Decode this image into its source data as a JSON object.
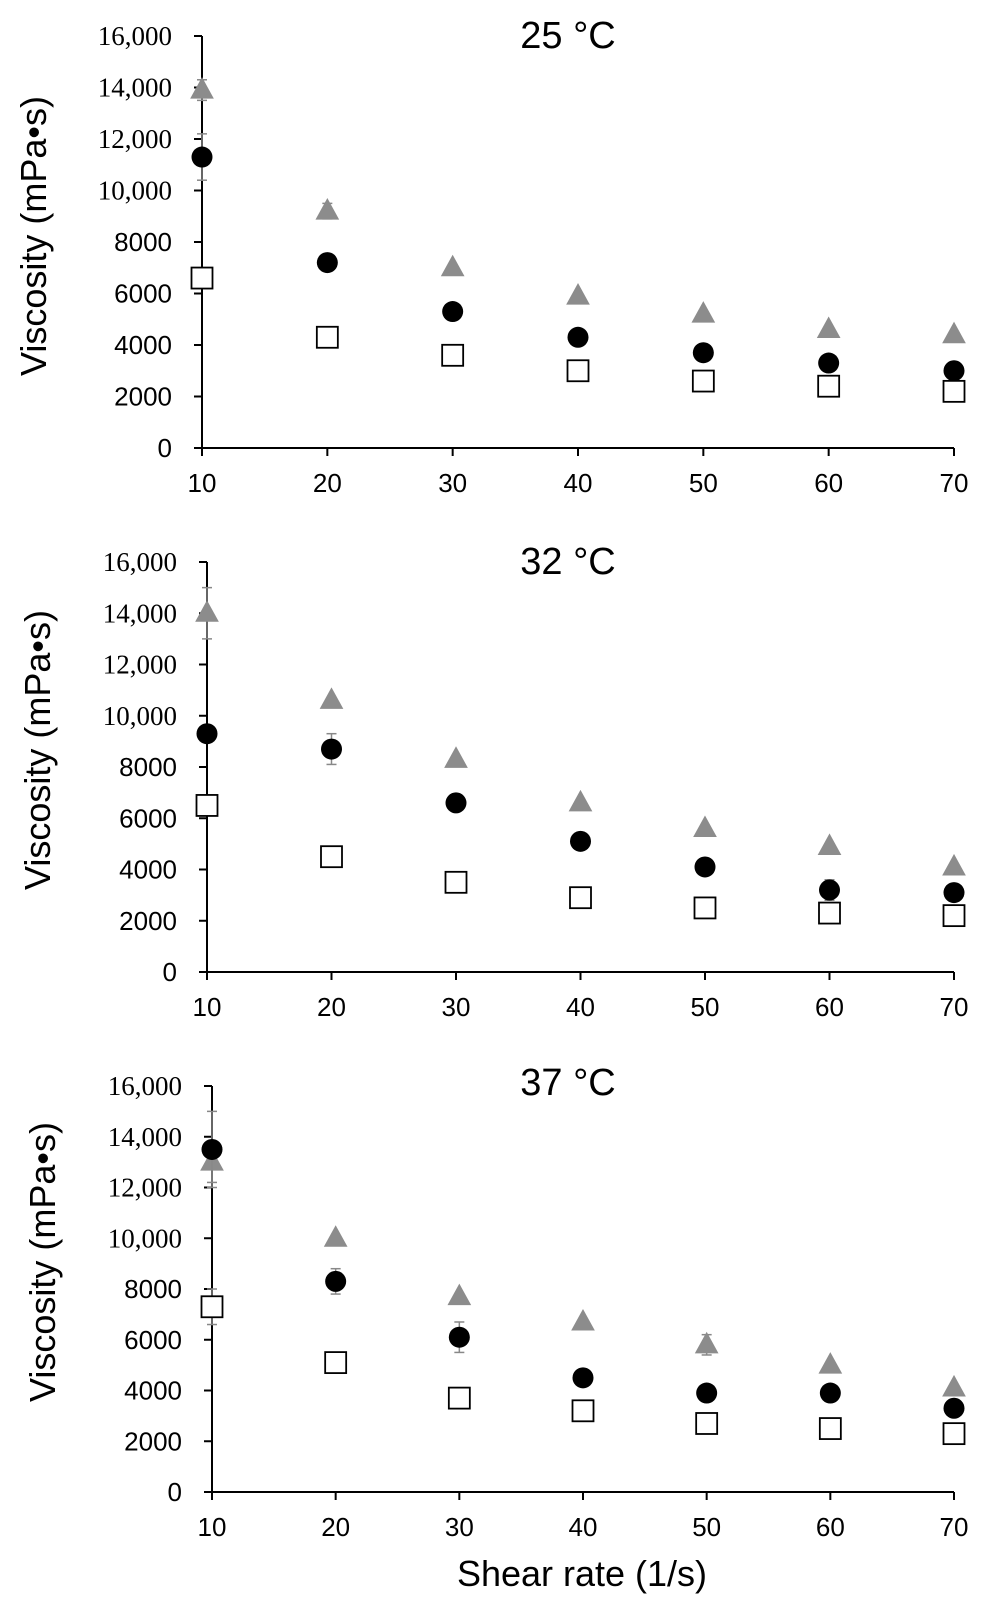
{
  "chart_data": [
    {
      "type": "scatter",
      "title": "25 °C",
      "xlabel": "",
      "ylabel": "Viscosity (mPa•s)",
      "x": [
        10,
        20,
        30,
        40,
        50,
        60,
        70
      ],
      "xticks": [
        "10",
        "20",
        "30",
        "40",
        "50",
        "60",
        "70"
      ],
      "yticks": [
        "0",
        "2000",
        "4000",
        "6000",
        "8000",
        "10,000",
        "12,000",
        "14,000",
        "16,000"
      ],
      "ylim": [
        0,
        16000
      ],
      "series": [
        {
          "name": "triangle",
          "marker": "triangle",
          "color": "#8c8c8c",
          "values": [
            13900,
            9200,
            7000,
            5900,
            5200,
            4600,
            4400
          ],
          "errors": [
            400,
            300,
            0,
            0,
            0,
            0,
            0
          ]
        },
        {
          "name": "circle",
          "marker": "circle",
          "color": "#000000",
          "values": [
            11300,
            7200,
            5300,
            4300,
            3700,
            3300,
            3000
          ],
          "errors": [
            900,
            0,
            0,
            0,
            0,
            0,
            0
          ]
        },
        {
          "name": "square",
          "marker": "square",
          "color": "#ffffff",
          "values": [
            6600,
            4300,
            3600,
            3000,
            2600,
            2400,
            2200
          ],
          "errors": [
            0,
            300,
            0,
            0,
            0,
            0,
            0
          ]
        }
      ]
    },
    {
      "type": "scatter",
      "title": "32 °C",
      "xlabel": "",
      "ylabel": "Viscosity (mPa•s)",
      "x": [
        10,
        20,
        30,
        40,
        50,
        60,
        70
      ],
      "xticks": [
        "10",
        "20",
        "30",
        "40",
        "50",
        "60",
        "70"
      ],
      "yticks": [
        "0",
        "2000",
        "4000",
        "6000",
        "8000",
        "10,000",
        "12,000",
        "14,000",
        "16,000"
      ],
      "ylim": [
        0,
        16000
      ],
      "series": [
        {
          "name": "triangle",
          "marker": "triangle",
          "color": "#8c8c8c",
          "values": [
            14000,
            10600,
            8300,
            6600,
            5600,
            4900,
            4100
          ],
          "errors": [
            1000,
            0,
            0,
            0,
            0,
            0,
            0
          ]
        },
        {
          "name": "circle",
          "marker": "circle",
          "color": "#000000",
          "values": [
            9300,
            8700,
            6600,
            5100,
            4100,
            3200,
            3100
          ],
          "errors": [
            0,
            600,
            0,
            0,
            0,
            400,
            0
          ]
        },
        {
          "name": "square",
          "marker": "square",
          "color": "#ffffff",
          "values": [
            6500,
            4500,
            3500,
            2900,
            2500,
            2300,
            2200
          ],
          "errors": [
            0,
            0,
            0,
            0,
            0,
            0,
            0
          ]
        }
      ]
    },
    {
      "type": "scatter",
      "title": "37 °C",
      "xlabel": "Shear rate (1/s)",
      "ylabel": "Viscosity (mPa•s)",
      "x": [
        10,
        20,
        30,
        40,
        50,
        60,
        70
      ],
      "xticks": [
        "10",
        "20",
        "30",
        "40",
        "50",
        "60",
        "70"
      ],
      "yticks": [
        "0",
        "2000",
        "4000",
        "6000",
        "8000",
        "10,000",
        "12,000",
        "14,000",
        "16,000"
      ],
      "ylim": [
        0,
        16000
      ],
      "series": [
        {
          "name": "triangle",
          "marker": "triangle",
          "color": "#8c8c8c",
          "values": [
            13000,
            10000,
            7700,
            6700,
            5800,
            5000,
            4100
          ],
          "errors": [
            800,
            0,
            0,
            0,
            400,
            0,
            0
          ]
        },
        {
          "name": "circle",
          "marker": "circle",
          "color": "#000000",
          "values": [
            13500,
            8300,
            6100,
            4500,
            3900,
            3900,
            3300
          ],
          "errors": [
            1500,
            500,
            600,
            0,
            0,
            0,
            0
          ]
        },
        {
          "name": "square",
          "marker": "square",
          "color": "#ffffff",
          "values": [
            7300,
            5100,
            3700,
            3200,
            2700,
            2500,
            2300
          ],
          "errors": [
            700,
            0,
            0,
            0,
            0,
            0,
            0
          ]
        }
      ]
    }
  ]
}
